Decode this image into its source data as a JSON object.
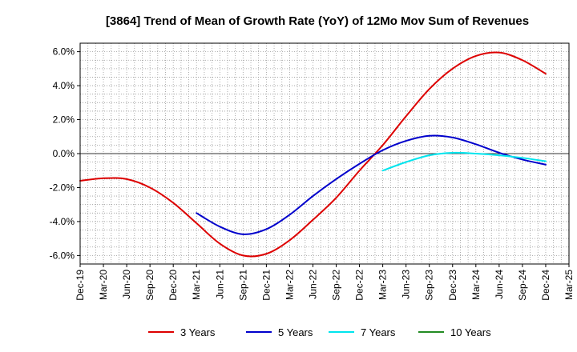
{
  "chart_data": {
    "type": "line",
    "title": "[3864]  Trend of Mean of Growth Rate (YoY) of 12Mo Mov Sum of Revenues",
    "xlabel": "",
    "ylabel": "",
    "x_tick_labels": [
      "Dec-19",
      "Mar-20",
      "Jun-20",
      "Sep-20",
      "Dec-20",
      "Mar-21",
      "Jun-21",
      "Sep-21",
      "Dec-21",
      "Mar-22",
      "Jun-22",
      "Sep-22",
      "Dec-22",
      "Mar-23",
      "Jun-23",
      "Sep-23",
      "Dec-23",
      "Mar-24",
      "Jun-24",
      "Sep-24",
      "Dec-24",
      "Mar-25"
    ],
    "y_ticks": [
      -6,
      -4,
      -2,
      0,
      2,
      4,
      6
    ],
    "y_tick_labels": [
      "-6.0%",
      "-4.0%",
      "-2.0%",
      "0.0%",
      "2.0%",
      "4.0%",
      "6.0%"
    ],
    "ylim": [
      -6.5,
      6.5
    ],
    "grid": true,
    "legend_position": "bottom",
    "series": [
      {
        "name": "3 Years",
        "color": "#dd0000",
        "values": [
          -1.6,
          -1.45,
          -1.5,
          -2.0,
          -2.9,
          -4.1,
          -5.3,
          -6.0,
          -5.9,
          -5.1,
          -3.9,
          -2.6,
          -1.0,
          0.5,
          2.2,
          3.8,
          5.0,
          5.75,
          5.95,
          5.5,
          4.7,
          null
        ]
      },
      {
        "name": "5 Years",
        "color": "#0000cc",
        "values": [
          null,
          null,
          null,
          null,
          null,
          -3.5,
          -4.3,
          -4.75,
          -4.45,
          -3.6,
          -2.5,
          -1.5,
          -0.6,
          0.2,
          0.75,
          1.05,
          0.95,
          0.55,
          0.05,
          -0.35,
          -0.65,
          null
        ]
      },
      {
        "name": "7 Years",
        "color": "#00e5ee",
        "values": [
          null,
          null,
          null,
          null,
          null,
          null,
          null,
          null,
          null,
          null,
          null,
          null,
          null,
          -1.0,
          -0.5,
          -0.1,
          0.05,
          0.0,
          -0.1,
          -0.25,
          -0.45,
          null
        ]
      },
      {
        "name": "10 Years",
        "color": "#228b22",
        "values": [
          null,
          null,
          null,
          null,
          null,
          null,
          null,
          null,
          null,
          null,
          null,
          null,
          null,
          null,
          null,
          null,
          null,
          null,
          null,
          null,
          null,
          null
        ]
      }
    ]
  }
}
